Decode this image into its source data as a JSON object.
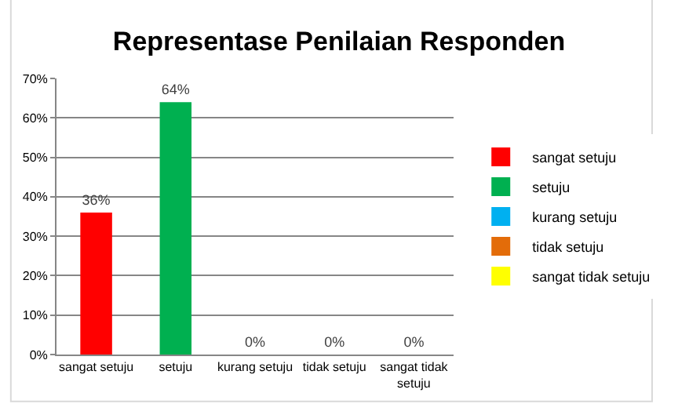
{
  "chart_data": {
    "type": "bar",
    "title": "Representase Penilaian Responden",
    "categories": [
      "sangat setuju",
      "setuju",
      "kurang setuju",
      "tidak setuju",
      "sangat tidak setuju"
    ],
    "series": [
      {
        "name": "sangat setuju",
        "color": "#ff0000",
        "values": [
          36,
          null,
          null,
          null,
          null
        ],
        "value_labels": [
          "36%",
          null,
          null,
          null,
          null
        ]
      },
      {
        "name": "setuju",
        "color": "#00b050",
        "values": [
          null,
          64,
          null,
          null,
          null
        ],
        "value_labels": [
          null,
          "64%",
          null,
          null,
          null
        ]
      },
      {
        "name": "kurang setuju",
        "color": "#00b0f0",
        "values": [
          null,
          null,
          0,
          null,
          null
        ],
        "value_labels": [
          null,
          null,
          "0%",
          null,
          null
        ]
      },
      {
        "name": "tidak setuju",
        "color": "#e36c09",
        "values": [
          null,
          null,
          null,
          0,
          null
        ],
        "value_labels": [
          null,
          null,
          null,
          "0%",
          null
        ]
      },
      {
        "name": "sangat tidak setuju",
        "color": "#ffff00",
        "values": [
          null,
          null,
          null,
          null,
          0
        ],
        "value_labels": [
          null,
          null,
          null,
          null,
          "0%"
        ]
      }
    ],
    "ylim": [
      0,
      70
    ],
    "yticks": [
      {
        "value": 0,
        "label": "0%"
      },
      {
        "value": 10,
        "label": "10%"
      },
      {
        "value": 20,
        "label": "20%"
      },
      {
        "value": 30,
        "label": "30%"
      },
      {
        "value": 40,
        "label": "40%"
      },
      {
        "value": 50,
        "label": "50%"
      },
      {
        "value": 60,
        "label": "60%"
      },
      {
        "value": 70,
        "label": "70%"
      }
    ],
    "grid": "y",
    "legend": "right"
  }
}
